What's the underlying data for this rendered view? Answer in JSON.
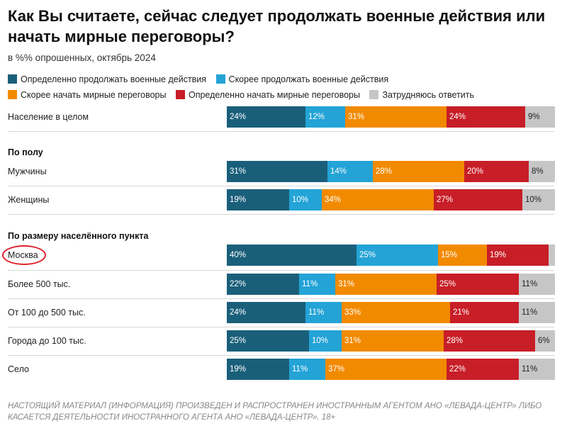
{
  "chart_data": {
    "type": "bar",
    "stacked": true,
    "orientation": "horizontal",
    "title": "Как Вы считаете, сейчас следует продолжать военные действия или начать мирные переговоры?",
    "subtitle": "в %% опрошенных, октябрь 2024",
    "legend_position": "top",
    "grid": false,
    "series": [
      {
        "name": "Определенно продолжать военные действия",
        "color": "#1a5f7a"
      },
      {
        "name": "Скорее продолжать военные действия",
        "color": "#23a3d6"
      },
      {
        "name": "Скорее начать мирные переговоры",
        "color": "#f28a00"
      },
      {
        "name": "Определенно начать мирные переговоры",
        "color": "#c81e27"
      },
      {
        "name": "Затрудняюсь ответить",
        "color": "#c6c6c6"
      }
    ],
    "rows": [
      {
        "label": "Население в целом",
        "values": [
          24,
          12,
          31,
          24,
          9
        ],
        "labels": [
          "24%",
          "12%",
          "31%",
          "24%",
          "9%"
        ]
      },
      {
        "label": "Мужчины",
        "values": [
          31,
          14,
          28,
          20,
          8
        ],
        "labels": [
          "31%",
          "14%",
          "28%",
          "20%",
          "8%"
        ]
      },
      {
        "label": "Женщины",
        "values": [
          19,
          10,
          34,
          27,
          10
        ],
        "labels": [
          "19%",
          "10%",
          "34%",
          "27%",
          "10%"
        ]
      },
      {
        "label": "Москва",
        "values": [
          40,
          25,
          15,
          19,
          2
        ],
        "labels": [
          "40%",
          "25%",
          "15%",
          "19%",
          ""
        ]
      },
      {
        "label": "Более 500 тыс.",
        "values": [
          22,
          11,
          31,
          25,
          11
        ],
        "labels": [
          "22%",
          "11%",
          "31%",
          "25%",
          "11%"
        ]
      },
      {
        "label": "От 100 до 500 тыс.",
        "values": [
          24,
          11,
          33,
          21,
          11
        ],
        "labels": [
          "24%",
          "11%",
          "33%",
          "21%",
          "11%"
        ]
      },
      {
        "label": "Города до 100 тыс.",
        "values": [
          25,
          10,
          31,
          28,
          6
        ],
        "labels": [
          "25%",
          "10%",
          "31%",
          "28%",
          "6%"
        ]
      },
      {
        "label": "Село",
        "values": [
          19,
          11,
          37,
          22,
          11
        ],
        "labels": [
          "19%",
          "11%",
          "37%",
          "22%",
          "11%"
        ]
      }
    ],
    "groups": [
      "По полу",
      "По размеру населённого пункта"
    ],
    "highlighted_row": "Москва"
  },
  "footer": "НАСТОЯЩИЙ МАТЕРИАЛ (ИНФОРМАЦИЯ) ПРОИЗВЕДЕН И РАСПРОСТРАНЕН ИНОСТРАННЫМ АГЕНТОМ АНО «ЛЕВАДА-ЦЕНТР» ЛИБО КАСАЕТСЯ ДЕЯТЕЛЬНОСТИ ИНОСТРАННОГО АГЕНТА АНО «ЛЕВАДА-ЦЕНТР». 18+"
}
